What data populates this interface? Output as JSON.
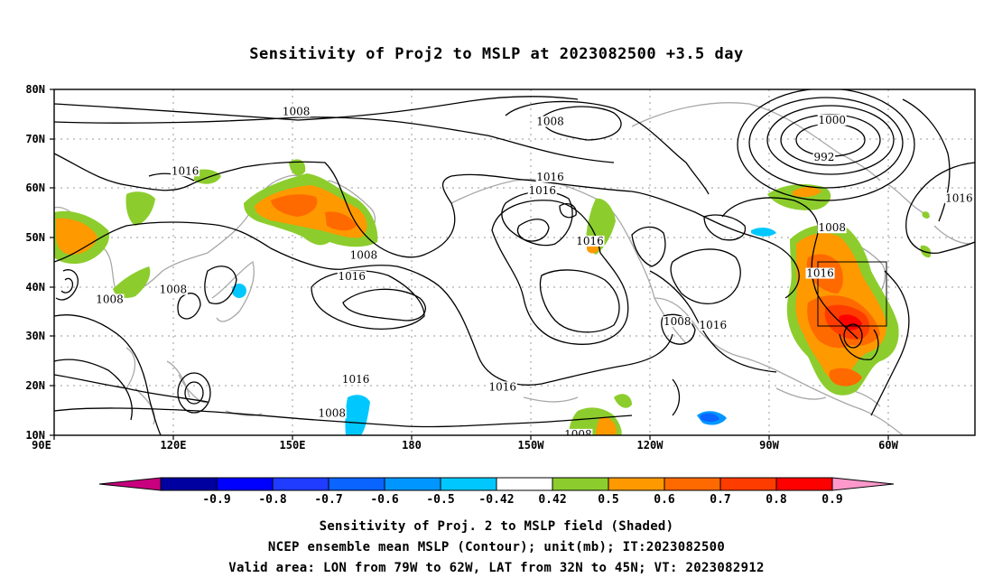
{
  "title": "Sensitivity of Proj2 to MSLP at 2023082500 +3.5 day",
  "map": {
    "lat_ticks": [
      "80N",
      "70N",
      "60N",
      "50N",
      "40N",
      "30N",
      "20N",
      "10N"
    ],
    "lon_ticks": [
      "90E",
      "120E",
      "150E",
      "180",
      "150W",
      "120W",
      "90W",
      "60W"
    ],
    "lon_range": [
      90,
      322
    ],
    "lat_range": [
      10,
      80
    ],
    "contour_labels": [
      {
        "text": "1008",
        "lon": 151,
        "lat": 75.5
      },
      {
        "text": "1008",
        "lon": 215,
        "lat": 73.5
      },
      {
        "text": "1000",
        "lon": 286,
        "lat": 73.8
      },
      {
        "text": "992",
        "lon": 284,
        "lat": 66.3
      },
      {
        "text": "1016",
        "lon": 123,
        "lat": 63.5
      },
      {
        "text": "1016",
        "lon": 215,
        "lat": 62.3
      },
      {
        "text": "1016",
        "lon": 213,
        "lat": 59.5
      },
      {
        "text": "1016",
        "lon": 318,
        "lat": 58.0
      },
      {
        "text": "1008",
        "lon": 286,
        "lat": 52.0
      },
      {
        "text": "1016",
        "lon": 225,
        "lat": 49.3
      },
      {
        "text": "1008",
        "lon": 168,
        "lat": 46.5
      },
      {
        "text": "1016",
        "lon": 165,
        "lat": 42.2
      },
      {
        "text": "1016",
        "lon": 283,
        "lat": 42.8
      },
      {
        "text": "1008",
        "lon": 120,
        "lat": 39.5
      },
      {
        "text": "1008",
        "lon": 104,
        "lat": 37.5
      },
      {
        "text": "1008",
        "lon": 247,
        "lat": 33.0
      },
      {
        "text": "1016",
        "lon": 256,
        "lat": 32.3
      },
      {
        "text": "1016",
        "lon": 166,
        "lat": 21.3
      },
      {
        "text": "1016",
        "lon": 203,
        "lat": 19.8
      },
      {
        "text": "1008",
        "lon": 160,
        "lat": 14.5
      },
      {
        "text": "1008",
        "lon": 222,
        "lat": 10.2
      }
    ],
    "valid_area": {
      "lon": [
        281,
        298
      ],
      "lat": [
        32,
        45
      ]
    }
  },
  "colorbar": {
    "labels": [
      "-0.9",
      "-0.8",
      "-0.7",
      "-0.6",
      "-0.5",
      "-0.42",
      "0.42",
      "0.5",
      "0.6",
      "0.7",
      "0.8",
      "0.9"
    ],
    "low_end_color": "#c8007f",
    "high_end_color": "#ff99cc",
    "colors": [
      "#0000a0",
      "#0000ff",
      "#1f3cff",
      "#0a64ff",
      "#0096ff",
      "#00c8ff",
      "#ffffff",
      "#8ccd2d",
      "#ff9900",
      "#ff6a00",
      "#ff3c00",
      "#ff0000"
    ]
  },
  "captions": {
    "line1": "Sensitivity of Proj. 2 to MSLP field (Shaded)",
    "line2": "NCEP ensemble mean MSLP (Contour); unit(mb); IT:2023082500",
    "line3": "Valid area: LON from 79W to 62W, LAT from 32N to 45N; VT: 2023082912"
  }
}
